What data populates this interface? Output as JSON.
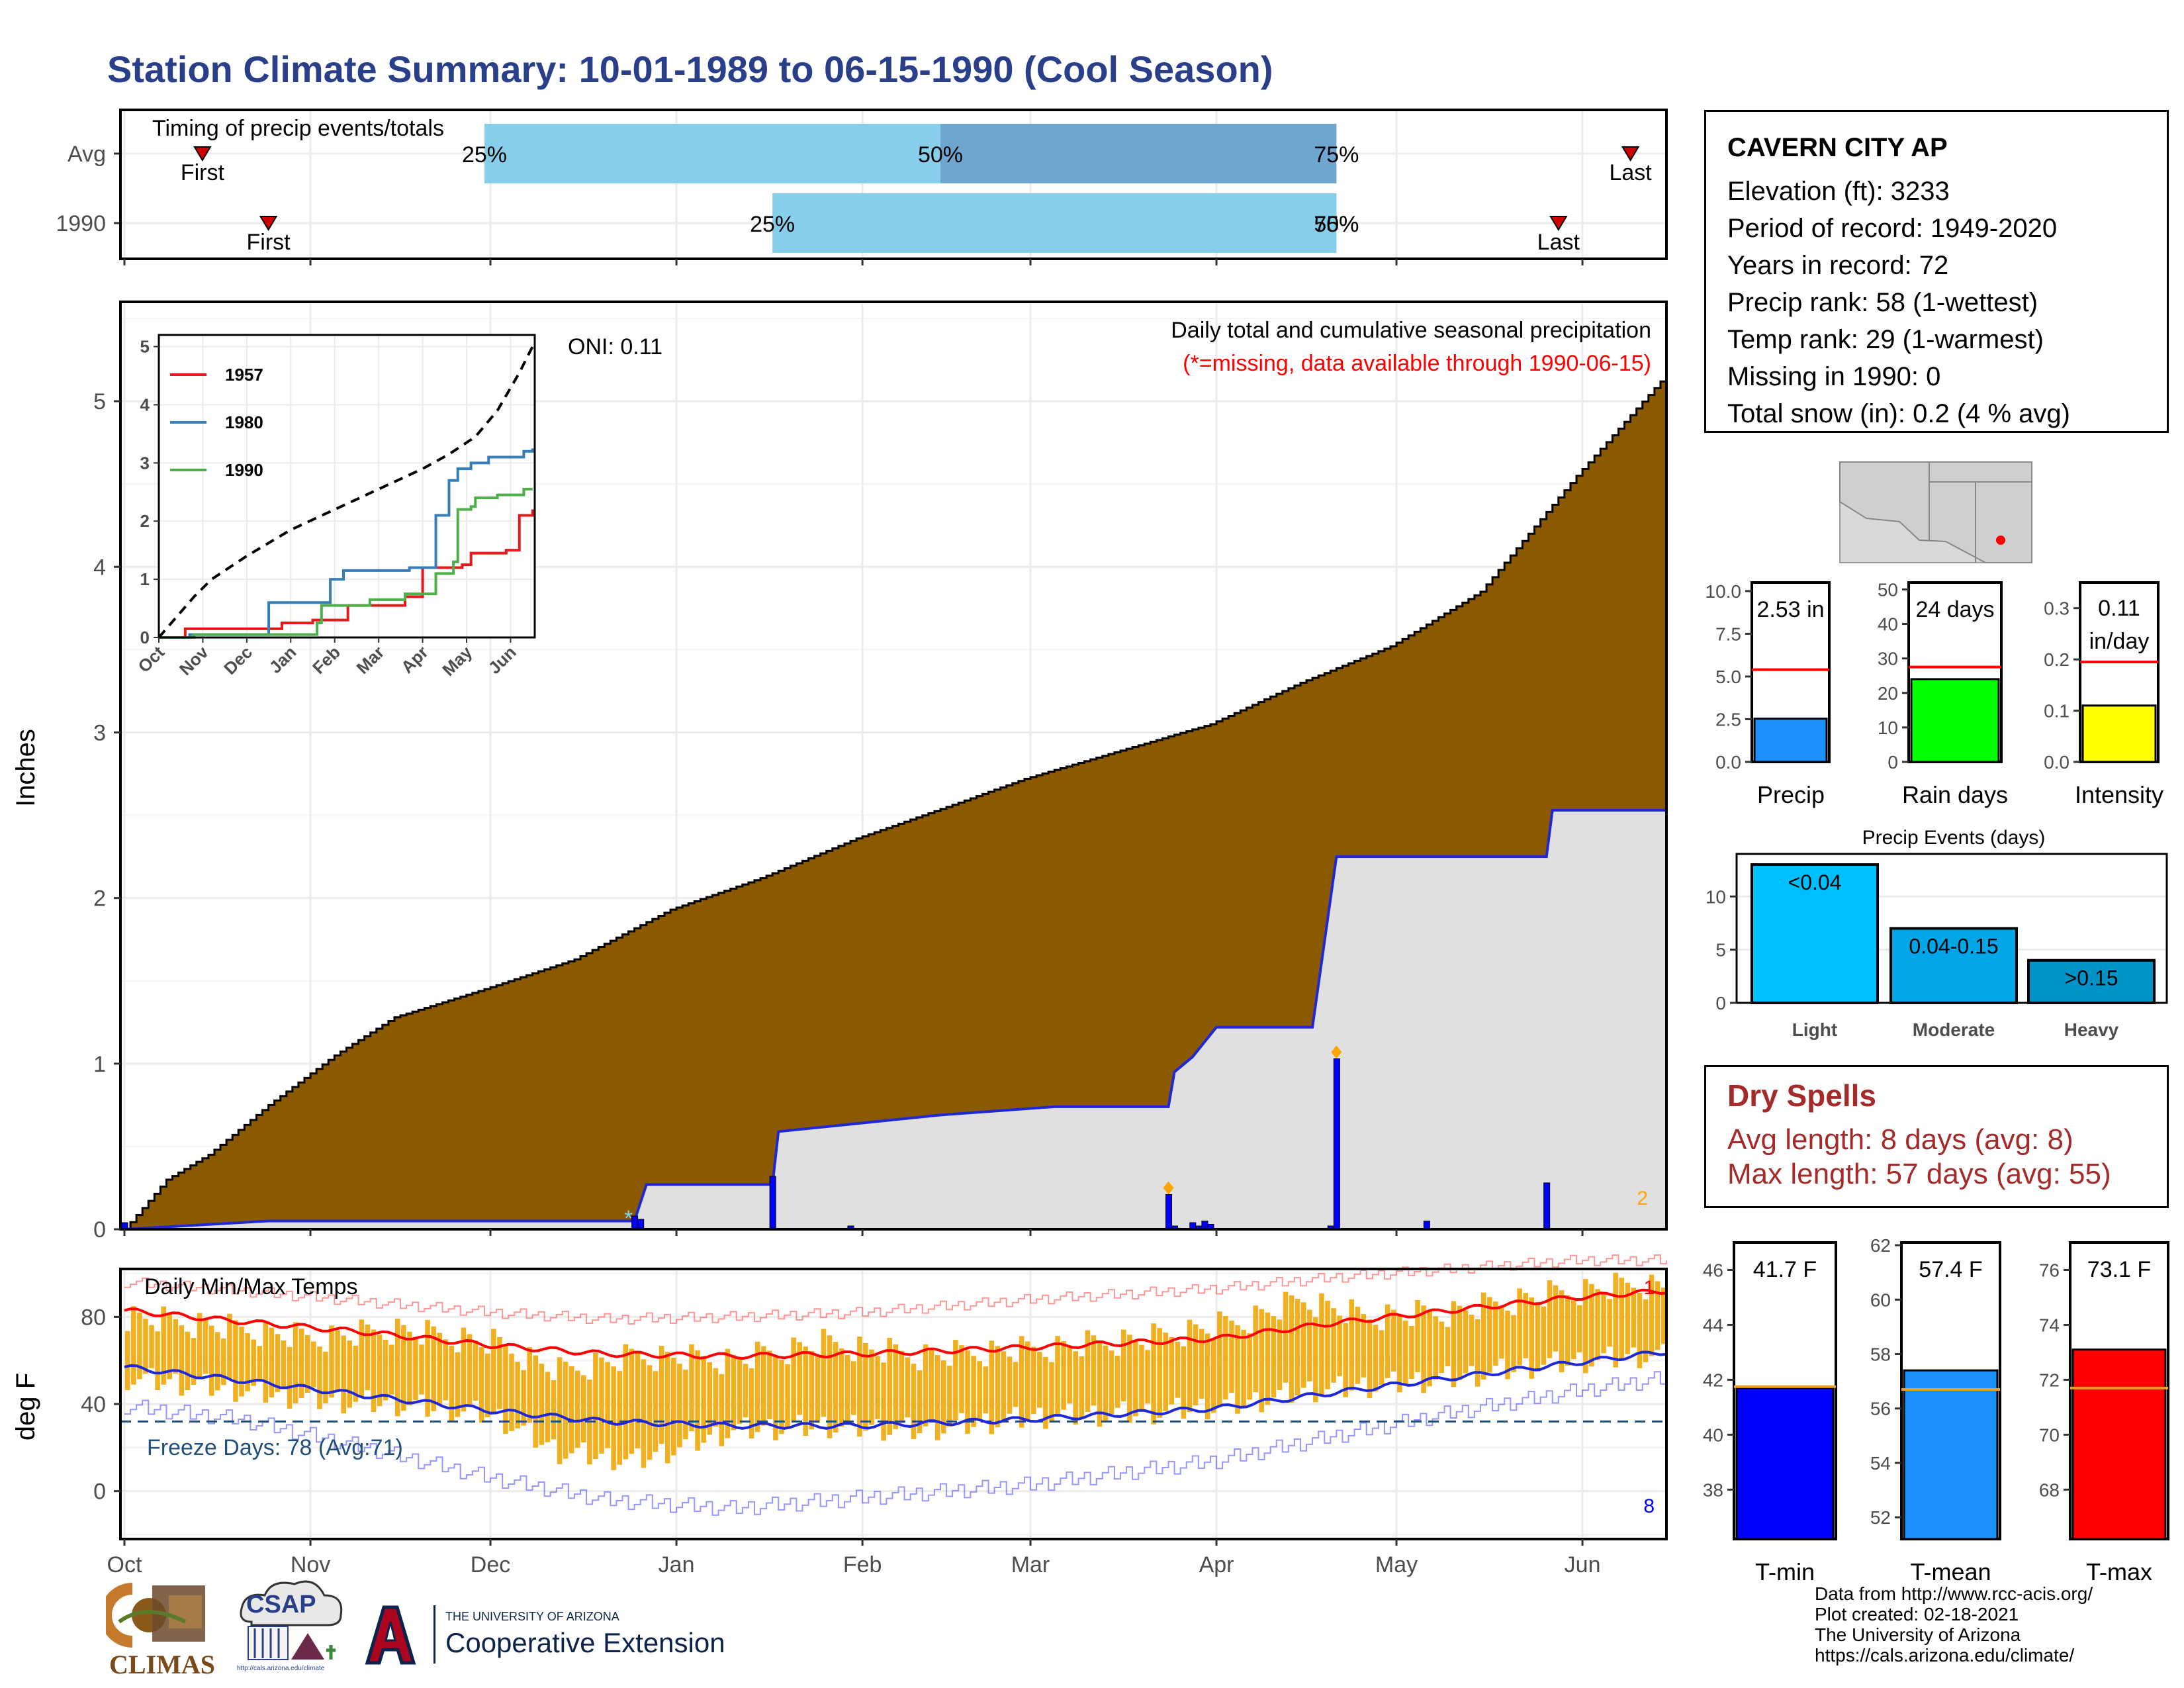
{
  "page": {
    "title": "Station Climate Summary: 10-01-1989 to 06-15-1990 (Cool Season)"
  },
  "colors": {
    "title": "#2a3f8a",
    "cumulative_avg_fill": "#8b5a00",
    "cumulative_obs_fill": "#e0e0e0",
    "cumulative_obs_line": "#1f28d6",
    "timing_light": "#87ceeb",
    "timing_dark": "#6fa6cf",
    "temp_bars": "#f0b020",
    "avg_max_line": "#ff0000",
    "avg_min_line": "#1f28d6",
    "dry_spells": "#a52a2a",
    "freeze_text": "#1f4e79"
  },
  "station": {
    "name": "CAVERN CITY AP",
    "lines": [
      "Elevation (ft): 3233",
      "Period of record: 1949-2020",
      "Years in record: 72",
      "Precip rank: 58 (1-wettest)",
      "Temp rank: 29 (1-warmest)",
      "Missing in 1990: 0",
      "Total snow (in): 0.2 (4 % avg)"
    ]
  },
  "dry_spells": {
    "title": "Dry Spells",
    "avg": "Avg length: 8 days (avg: 8)",
    "max": "Max length: 57 days (avg: 55)"
  },
  "credits": {
    "lines": [
      "Data from http://www.rcc-acis.org/",
      "Plot created: 02-18-2021",
      "The University of Arizona",
      "https://cals.arizona.edu/climate/"
    ]
  },
  "logos": {
    "climas": "CLIMAS",
    "csap": "CSAP",
    "csap_url": "http://cals.arizona.edu/climate",
    "ua_small": "THE UNIVERSITY OF ARIZONA",
    "ua_big": "Cooperative Extension"
  },
  "map": {
    "station_dot_color": "#ff0000"
  },
  "chart_data": [
    {
      "id": "timing",
      "type": "bar",
      "title": "Timing of precip events/totals",
      "rows": [
        {
          "label": "Avg",
          "first": "10-14",
          "last": "06-09",
          "p25": "11-30",
          "p50": "02-14",
          "p75": "04-21",
          "labels": [
            "25%",
            "50%",
            "75%"
          ],
          "first_label": "First",
          "last_label": "Last"
        },
        {
          "label": "1990",
          "first": "10-25",
          "last": "05-28",
          "p25": "01-17",
          "p50": "04-21",
          "p75": "04-21",
          "labels": [
            "25%",
            "50%",
            "75%"
          ],
          "first_label": "First",
          "last_label": "Last"
        }
      ]
    },
    {
      "id": "precip",
      "type": "area",
      "title": "Daily total and cumulative seasonal precipitation",
      "subtitle": "(*=missing, data available through 1990-06-15)",
      "annotation": "ONI: 0.11",
      "ylabel": "Inches",
      "ylim": [
        0,
        5.6
      ],
      "yticks": [
        0,
        1,
        2,
        3,
        4,
        5
      ],
      "corner_value": "2",
      "avg_cumulative": {
        "x": [
          "10-01",
          "10-08",
          "10-15",
          "10-25",
          "11-05",
          "11-15",
          "11-30",
          "12-15",
          "12-31",
          "01-15",
          "01-31",
          "02-15",
          "02-28",
          "03-15",
          "03-31",
          "04-15",
          "04-30",
          "05-15",
          "05-31",
          "06-15"
        ],
        "y": [
          0.0,
          0.3,
          0.45,
          0.75,
          1.05,
          1.28,
          1.45,
          1.63,
          1.93,
          2.12,
          2.36,
          2.55,
          2.72,
          2.88,
          3.05,
          3.3,
          3.52,
          3.85,
          4.55,
          5.16
        ]
      },
      "obs_cumulative": {
        "x": [
          "10-01",
          "10-25",
          "12-25",
          "12-27",
          "01-17",
          "01-18",
          "02-14",
          "03-05",
          "03-24",
          "03-25",
          "03-28",
          "04-01",
          "04-17",
          "04-21",
          "05-26",
          "05-27",
          "06-15"
        ],
        "y": [
          0.0,
          0.05,
          0.05,
          0.27,
          0.27,
          0.59,
          0.69,
          0.74,
          0.74,
          0.95,
          1.04,
          1.22,
          1.22,
          2.25,
          2.25,
          2.53,
          2.53
        ]
      },
      "daily_bars": {
        "x": [
          "10-01",
          "12-25",
          "12-26",
          "01-17",
          "01-30",
          "03-24",
          "03-25",
          "03-28",
          "03-29",
          "03-30",
          "03-31",
          "04-20",
          "04-21",
          "05-06",
          "05-26"
        ],
        "y": [
          0.04,
          0.08,
          0.06,
          0.32,
          0.02,
          0.21,
          0.02,
          0.04,
          0.02,
          0.05,
          0.03,
          0.02,
          1.03,
          0.05,
          0.28
        ]
      },
      "markers": [
        {
          "date": "12-24",
          "type": "snow",
          "symbol": "*"
        },
        {
          "date": "03-24",
          "type": "diamond"
        },
        {
          "date": "04-21",
          "type": "diamond"
        }
      ]
    },
    {
      "id": "inset",
      "type": "line",
      "xticks": [
        "Oct",
        "Nov",
        "Dec",
        "Jan",
        "Feb",
        "Mar",
        "Apr",
        "May",
        "Jun"
      ],
      "yticks": [
        0,
        1,
        2,
        3,
        4,
        5
      ],
      "ylim": [
        0,
        5.2
      ],
      "series": [
        {
          "name": "1957",
          "color": "#e41a1c",
          "x": [
            0,
            0.6,
            2.8,
            3.5,
            4.3,
            5.6,
            6.0,
            6.9,
            7.1,
            7.9,
            8.2,
            8.5
          ],
          "y": [
            0,
            0.15,
            0.25,
            0.3,
            0.55,
            0.7,
            1.2,
            1.25,
            1.45,
            1.5,
            2.1,
            2.2
          ]
        },
        {
          "name": "1980",
          "color": "#377eb8",
          "x": [
            0,
            0.7,
            2.5,
            3.9,
            4.2,
            5.7,
            6.3,
            6.6,
            6.8,
            7.1,
            7.5,
            8.3,
            8.5
          ],
          "y": [
            0,
            0.05,
            0.6,
            1.0,
            1.15,
            1.2,
            2.1,
            2.7,
            2.9,
            3.0,
            3.1,
            3.2,
            3.25
          ]
        },
        {
          "name": "1990",
          "color": "#4daf4a",
          "x": [
            0,
            0.8,
            2.8,
            3.6,
            3.7,
            4.8,
            5.6,
            6.3,
            6.7,
            6.8,
            7.1,
            7.2,
            7.7,
            8.3,
            8.5
          ],
          "y": [
            0,
            0.05,
            0.05,
            0.25,
            0.55,
            0.65,
            0.75,
            1.1,
            1.3,
            2.2,
            2.25,
            2.4,
            2.45,
            2.55,
            2.55
          ]
        },
        {
          "name": "avg",
          "color": "#000000",
          "dashed": true,
          "x": [
            0,
            0.4,
            0.8,
            1.2,
            2.0,
            3.0,
            4.0,
            5.0,
            6.0,
            6.6,
            7.2,
            7.7,
            8.2,
            8.5
          ],
          "y": [
            0,
            0.35,
            0.7,
            1.0,
            1.4,
            1.85,
            2.2,
            2.55,
            2.9,
            3.15,
            3.45,
            3.9,
            4.55,
            5.0
          ]
        }
      ]
    },
    {
      "id": "bars_precip",
      "type": "bar",
      "title": "Precip",
      "value_label": "2.53 in",
      "value": 2.53,
      "avg": 5.4,
      "ylim": [
        0,
        10.5
      ],
      "yticks": [
        "0.0",
        "2.5",
        "5.0",
        "7.5",
        "10.0"
      ],
      "ytick_values": [
        0,
        2.5,
        5,
        7.5,
        10
      ],
      "color": "#1e90ff"
    },
    {
      "id": "bars_raindays",
      "type": "bar",
      "title": "Rain days",
      "value_label": "24 days",
      "value": 24,
      "avg": 27.5,
      "ylim": [
        0,
        52
      ],
      "yticks": [
        "0",
        "10",
        "20",
        "30",
        "40",
        "50"
      ],
      "ytick_values": [
        0,
        10,
        20,
        30,
        40,
        50
      ],
      "color": "#00ff00"
    },
    {
      "id": "bars_intensity",
      "type": "bar",
      "title": "Intensity",
      "value_label": "0.11",
      "value_label2": "in/day",
      "value": 0.11,
      "avg": 0.195,
      "ylim": [
        0,
        0.35
      ],
      "yticks": [
        "0.0",
        "0.1",
        "0.2",
        "0.3"
      ],
      "ytick_values": [
        0,
        0.1,
        0.2,
        0.3
      ],
      "color": "#ffff00"
    },
    {
      "id": "events",
      "type": "bar",
      "title": "Precip Events (days)",
      "categories": [
        "Light",
        "Moderate",
        "Heavy"
      ],
      "values": [
        13,
        7,
        4
      ],
      "labels": [
        "<0.04",
        "0.04-0.15",
        ">0.15"
      ],
      "colors": [
        "#00bfff",
        "#00a6e6",
        "#0093c9"
      ],
      "ylim": [
        0,
        14
      ],
      "yticks": [
        0,
        5,
        10
      ]
    },
    {
      "id": "temps",
      "type": "bar",
      "title": "Daily Min/Max Temps",
      "ylabel": "deg F",
      "ylim": [
        -22,
        102
      ],
      "yticks": [
        0,
        40,
        80
      ],
      "freeze_line": 32,
      "freeze_label": "Freeze Days: 78 (Avg:71)",
      "corner_top": "1",
      "corner_bottom": "8",
      "avg_max": {
        "x": [
          "10-01",
          "10-20",
          "11-10",
          "12-01",
          "12-20",
          "01-10",
          "02-01",
          "03-01",
          "04-01",
          "04-20",
          "05-10",
          "05-31",
          "06-15"
        ],
        "y": [
          83,
          78,
          73,
          67,
          63,
          62,
          63,
          66,
          70,
          77,
          83,
          89,
          92
        ]
      },
      "avg_min": {
        "x": [
          "10-01",
          "10-20",
          "11-10",
          "12-01",
          "12-20",
          "01-10",
          "02-01",
          "03-01",
          "04-01",
          "04-20",
          "05-10",
          "05-31",
          "06-15"
        ],
        "y": [
          57,
          51,
          44,
          37,
          32,
          30,
          30,
          33,
          38,
          45,
          52,
          59,
          64
        ]
      },
      "rec_max": {
        "x": [
          "10-01",
          "10-20",
          "11-10",
          "12-01",
          "12-20",
          "01-10",
          "02-01",
          "03-01",
          "04-01",
          "04-20",
          "05-10",
          "05-31",
          "06-15"
        ],
        "y": [
          96,
          92,
          87,
          82,
          79,
          80,
          82,
          88,
          93,
          98,
          102,
          106,
          106
        ]
      },
      "rec_min": {
        "x": [
          "10-01",
          "10-20",
          "11-10",
          "12-01",
          "12-20",
          "01-10",
          "02-01",
          "03-01",
          "04-01",
          "04-20",
          "05-10",
          "05-31",
          "06-15"
        ],
        "y": [
          39,
          33,
          20,
          6,
          -4,
          -8,
          -3,
          3,
          14,
          25,
          36,
          46,
          52
        ]
      },
      "obs_max_anchor": {
        "x": [
          "10-01",
          "10-15",
          "11-01",
          "11-15",
          "12-01",
          "12-12",
          "12-25",
          "01-10",
          "01-25",
          "02-10",
          "03-01",
          "03-20",
          "04-05",
          "04-15",
          "04-25",
          "05-10",
          "05-25",
          "06-10",
          "06-15"
        ],
        "y": [
          80,
          76,
          70,
          74,
          68,
          55,
          62,
          60,
          68,
          62,
          65,
          70,
          78,
          88,
          80,
          82,
          90,
          95,
          93
        ]
      },
      "obs_min_anchor": {
        "x": [
          "10-01",
          "10-15",
          "11-01",
          "11-15",
          "12-01",
          "12-12",
          "12-25",
          "01-10",
          "01-25",
          "02-10",
          "03-01",
          "03-20",
          "04-05",
          "04-15",
          "04-25",
          "05-10",
          "05-25",
          "06-10",
          "06-15"
        ],
        "y": [
          52,
          48,
          42,
          40,
          35,
          18,
          14,
          28,
          30,
          28,
          34,
          36,
          40,
          46,
          48,
          52,
          58,
          62,
          62
        ]
      }
    },
    {
      "id": "temp_bars",
      "type": "bar",
      "panels": [
        {
          "title": "T-min",
          "value_label": "41.7 F",
          "value": 41.7,
          "avg": 41.75,
          "ylim": [
            36.2,
            47
          ],
          "yticks": [
            38,
            40,
            42,
            44,
            46
          ],
          "color": "#0000ff"
        },
        {
          "title": "T-mean",
          "value_label": "57.4 F",
          "value": 57.4,
          "avg": 56.7,
          "ylim": [
            51.2,
            62.1
          ],
          "yticks": [
            52,
            54,
            56,
            58,
            60,
            62
          ],
          "color": "#1e90ff"
        },
        {
          "title": "T-max",
          "value_label": "73.1 F",
          "value": 73.1,
          "avg": 71.7,
          "ylim": [
            66.2,
            77
          ],
          "yticks": [
            68,
            70,
            72,
            74,
            76
          ],
          "color": "#ff0000"
        }
      ]
    },
    {
      "id": "months",
      "type": "line",
      "xticks": [
        "Oct",
        "Nov",
        "Dec",
        "Jan",
        "Feb",
        "Mar",
        "Apr",
        "May",
        "Jun"
      ]
    }
  ]
}
